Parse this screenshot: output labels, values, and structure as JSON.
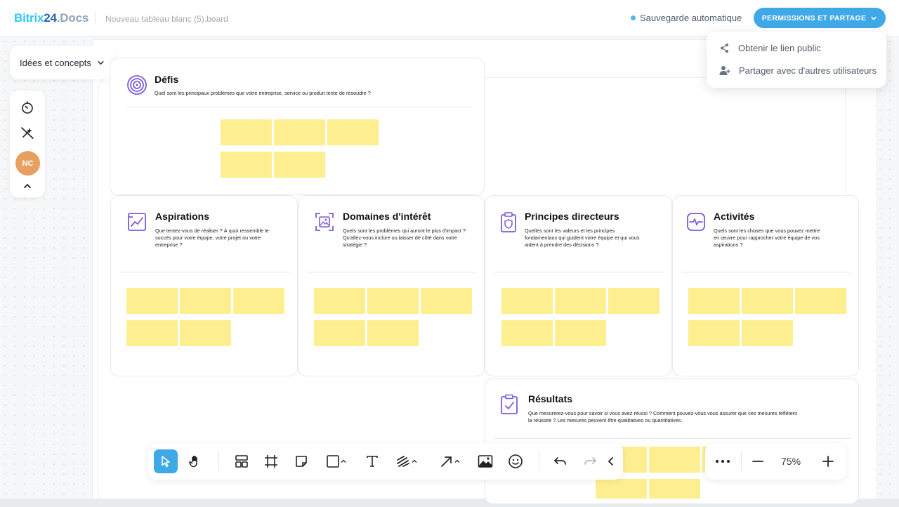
{
  "header": {
    "logo_b": "Bitrix",
    "logo_n": "24",
    "logo_d": ".Docs",
    "board_name": "Nouveau tableau blanc (5).board",
    "autosave": "Sauvegarde automatique",
    "permissions_button": "PERMISSIONS ET PARTAGE"
  },
  "share_menu": {
    "items": [
      {
        "label": "Obtenir le lien public",
        "icon": "share-icon"
      },
      {
        "label": "Partager avec d'autres utilisateurs",
        "icon": "add-user-icon"
      }
    ]
  },
  "frame_selector": {
    "label": "Idées et concepts"
  },
  "left_tools": {
    "avatar_initials": "NC",
    "avatar_color": "#e8a060"
  },
  "cards": {
    "defis": {
      "title": "Défis",
      "desc": "Quel sont les principaux problèmes que votre entreprise, service ou produit tente de résoudre ?"
    },
    "aspirations": {
      "title": "Aspirations",
      "desc": "Que tentez-vous de réaliser ? À quoi ressemble le succès pour votre équipe, votre projet ou votre entreprise ?"
    },
    "domaines": {
      "title": "Domaines d'intérêt",
      "desc": "Quels sont les problèmes qui auront le plus d'impact ? Qu'allez-vous inclure ou laisser de côté dans votre stratégie ?"
    },
    "principes": {
      "title": "Principes directeurs",
      "desc": "Quelles sont les valeurs et les principes fondamentaux qui guident votre équipe et qui vous aident à prendre des décisions ?"
    },
    "activites": {
      "title": "Activités",
      "desc": "Quels sont les choses que vous pouvez mettre en œuvre pour rapprocher votre équipe de vos aspirations ?"
    },
    "resultats": {
      "title": "Résultats",
      "desc": "Que mesurerez-vous pour savoir si vous avez réussi ? Comment pouvez-vous vous assurer que ces mesures reflètent la réussite ? Les mesures peuvent être qualitatives ou quantitatives."
    }
  },
  "zoom": {
    "value": "75%"
  },
  "colors": {
    "accent": "#3fa8e6",
    "sticky_note": "#fdef8f",
    "icon_purple": "#7b5cd6"
  }
}
